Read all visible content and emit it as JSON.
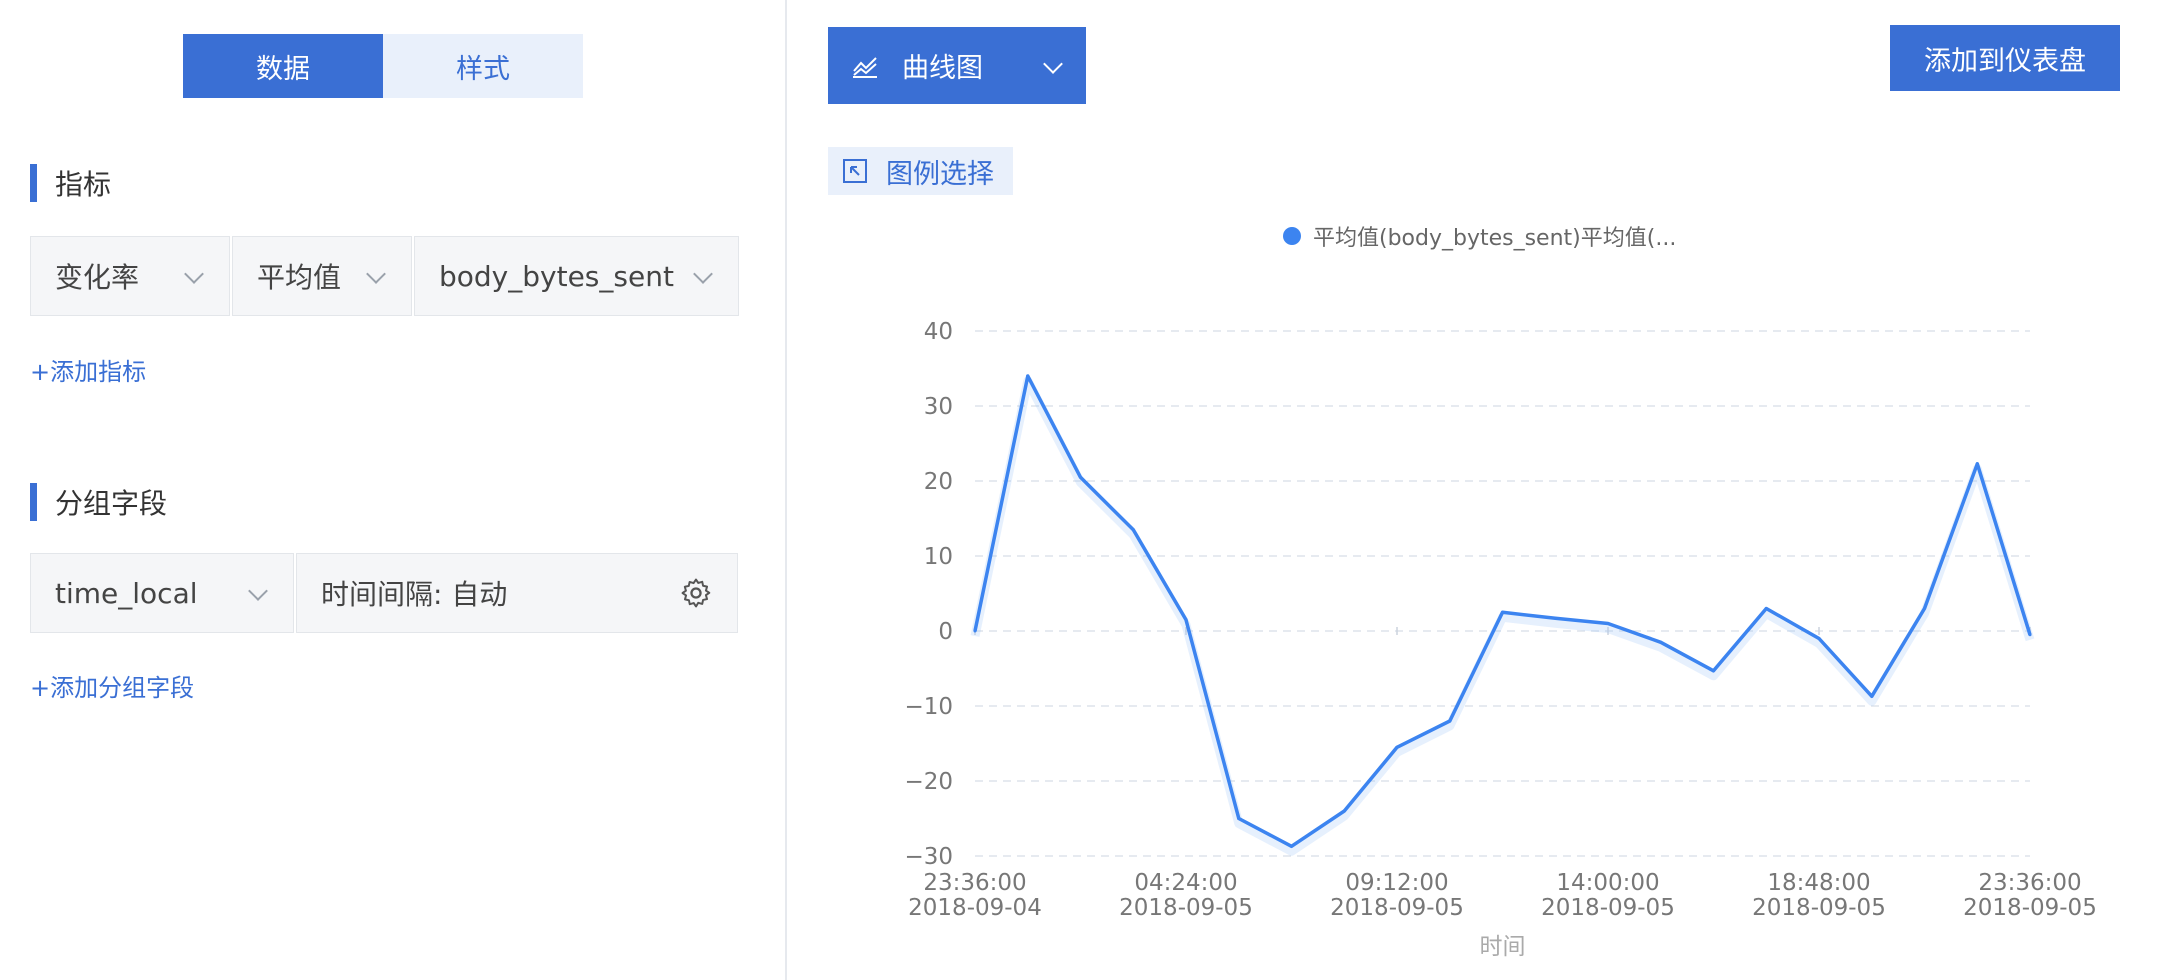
{
  "tabs": {
    "data": "数据",
    "style": "样式"
  },
  "metrics": {
    "title": "指标",
    "selects": [
      "变化率",
      "平均值",
      "body_bytes_sent"
    ],
    "add_link": "+添加指标"
  },
  "group": {
    "title": "分组字段",
    "field": "time_local",
    "interval": "时间间隔: 自动",
    "add_link": "+添加分组字段"
  },
  "toolbar": {
    "chart_type": "曲线图",
    "add_dashboard": "添加到仪表盘",
    "legend_select": "图例选择"
  },
  "colors": {
    "accent": "#3a6fd4",
    "series": "#3c84f0"
  },
  "chart_data": {
    "type": "line",
    "xlabel": "时间",
    "ylabel": "",
    "ylim": [
      -30,
      40
    ],
    "yticks": [
      40,
      30,
      20,
      10,
      0,
      -10,
      -20,
      -30
    ],
    "x_tick_labels": [
      [
        "23:36:00",
        "2018-09-04"
      ],
      [
        "04:24:00",
        "2018-09-05"
      ],
      [
        "09:12:00",
        "2018-09-05"
      ],
      [
        "14:00:00",
        "2018-09-05"
      ],
      [
        "18:48:00",
        "2018-09-05"
      ],
      [
        "23:36:00",
        "2018-09-05"
      ]
    ],
    "series": [
      {
        "name": "平均值(body_bytes_sent)平均值(...",
        "values": [
          0,
          34,
          20.5,
          13.5,
          1.5,
          -25,
          -28.7,
          -24,
          -15.5,
          -12,
          2.5,
          1.7,
          1,
          -1.5,
          -5.3,
          3,
          -1,
          -8.7,
          3,
          22.3,
          -0.5
        ]
      }
    ],
    "grid": true,
    "legend": "top"
  }
}
